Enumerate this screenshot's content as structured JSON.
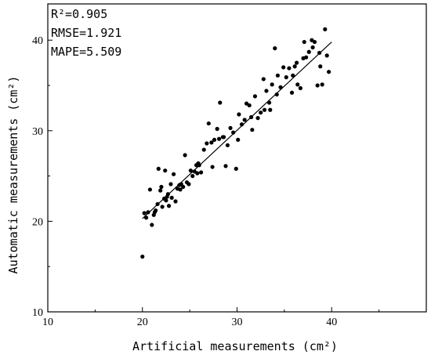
{
  "chart_data": {
    "type": "scatter",
    "xlabel": "Artificial measurements (cm²)",
    "ylabel": "Automatic measurements (cm²)",
    "xlim": [
      10,
      50
    ],
    "ylim": [
      10,
      44
    ],
    "xticks": [
      10,
      20,
      30,
      40
    ],
    "yticks": [
      10,
      20,
      30,
      40
    ],
    "annotations": [
      "R²=0.905",
      "RMSE=1.921",
      "MAPE=5.509"
    ],
    "fit_line": {
      "x": [
        20,
        40
      ],
      "y": [
        20.3,
        39.8
      ]
    },
    "points": {
      "x": [
        20.0,
        20.2,
        20.4,
        20.6,
        20.8,
        21.0,
        21.2,
        21.4,
        21.6,
        21.7,
        21.9,
        22.0,
        22.1,
        22.3,
        22.4,
        22.5,
        22.7,
        22.8,
        23.0,
        23.1,
        23.3,
        23.5,
        23.7,
        23.9,
        24.1,
        24.3,
        24.5,
        24.7,
        24.9,
        25.1,
        25.3,
        25.5,
        25.7,
        25.9,
        26.2,
        26.5,
        26.8,
        27.0,
        27.3,
        27.6,
        27.9,
        28.2,
        28.5,
        28.8,
        29.0,
        29.3,
        29.6,
        29.9,
        30.2,
        30.5,
        30.8,
        31.0,
        31.3,
        31.6,
        31.9,
        32.2,
        32.5,
        32.8,
        33.1,
        33.4,
        33.7,
        34.0,
        34.3,
        34.6,
        34.9,
        35.2,
        35.5,
        35.8,
        36.1,
        36.4,
        36.7,
        37.0,
        37.3,
        37.6,
        37.9,
        38.2,
        38.5,
        38.8,
        39.0,
        39.3,
        39.5,
        39.7,
        38.7,
        37.1,
        36.3,
        35.9,
        34.2,
        32.9,
        31.5,
        30.1,
        28.6,
        27.4,
        25.8,
        24.0,
        22.6,
        21.3,
        28.1,
        26.0,
        33.5,
        38.0
      ],
      "y": [
        16.1,
        20.9,
        20.4,
        21.0,
        23.5,
        19.6,
        20.7,
        21.2,
        21.9,
        25.8,
        23.4,
        23.8,
        21.6,
        22.5,
        25.6,
        22.3,
        23.0,
        21.7,
        24.1,
        22.6,
        25.2,
        22.2,
        23.6,
        24.0,
        24.1,
        23.8,
        27.3,
        24.3,
        24.1,
        25.6,
        25.0,
        25.5,
        26.2,
        26.4,
        25.4,
        27.9,
        28.6,
        30.8,
        28.7,
        29.0,
        30.2,
        33.1,
        29.3,
        26.1,
        28.4,
        30.3,
        29.8,
        25.8,
        31.8,
        30.7,
        31.2,
        33.0,
        32.8,
        30.1,
        33.8,
        31.4,
        32.0,
        35.7,
        34.4,
        33.1,
        35.1,
        39.1,
        36.1,
        34.8,
        37.0,
        35.9,
        36.9,
        34.2,
        37.1,
        35.1,
        34.7,
        38.0,
        38.1,
        38.7,
        40.0,
        39.8,
        35.0,
        37.1,
        35.1,
        41.2,
        38.3,
        36.5,
        38.6,
        39.8,
        37.5,
        36.1,
        34.0,
        32.3,
        31.5,
        29.0,
        29.3,
        26.0,
        25.3,
        23.5,
        22.7,
        21.0,
        29.1,
        26.2,
        32.3,
        39.2
      ]
    }
  }
}
